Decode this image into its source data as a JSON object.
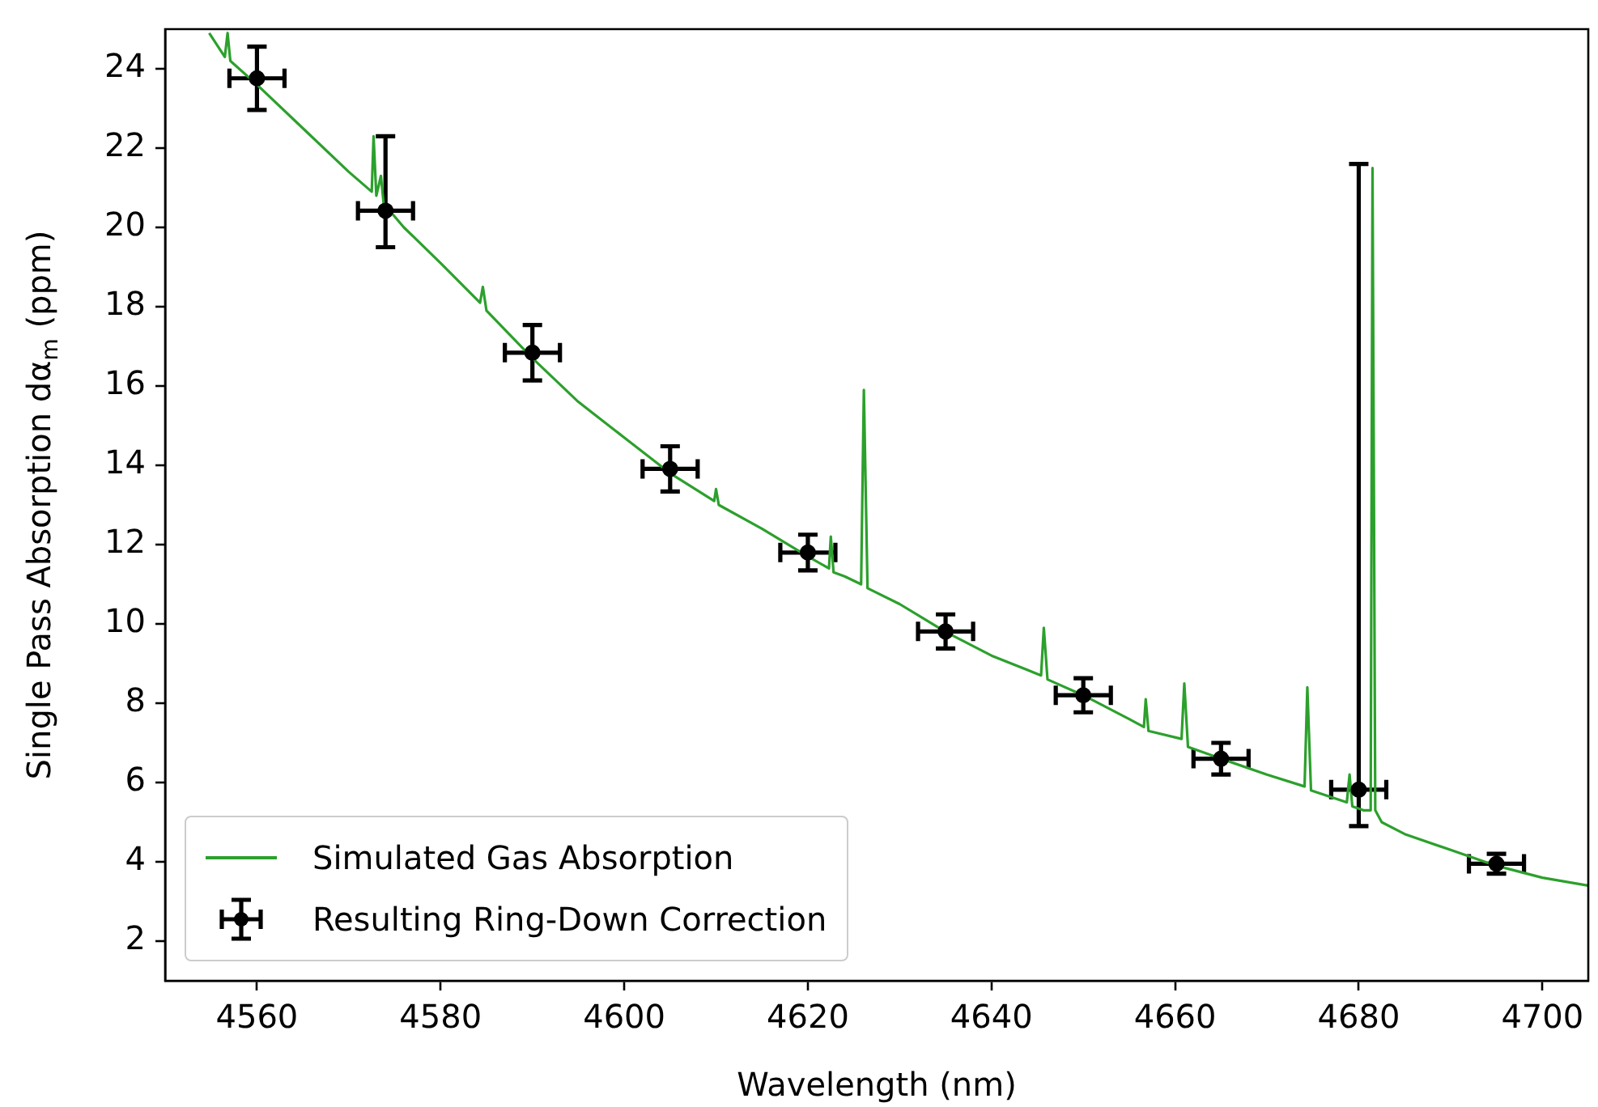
{
  "chart_data": {
    "type": "line",
    "xlabel": "Wavelength (nm)",
    "ylabel": "Single Pass Absorption dα$_{m}$ (ppm)",
    "xlim": [
      4550,
      4705
    ],
    "xticks": [
      4560,
      4580,
      4600,
      4620,
      4640,
      4660,
      4680,
      4700
    ],
    "ylim": [
      1,
      25
    ],
    "yticks": [
      2,
      4,
      6,
      8,
      10,
      12,
      14,
      16,
      18,
      20,
      22,
      24
    ],
    "grid": false,
    "legend": "bottom left",
    "series": [
      {
        "name": "Simulated Gas Absorption",
        "color": "#2ca02c",
        "x": [
          4554.8,
          4556.5,
          4556.8,
          4557.1,
          4560,
          4565,
          4570,
          4572.5,
          4572.7,
          4573.0,
          4573.5,
          4573.8,
          4576,
          4580,
          4584.3,
          4584.6,
          4585,
          4590,
          4595,
          4600,
          4605,
          4609.8,
          4610,
          4610.3,
          4615,
          4620,
          4622.3,
          4622.5,
          4622.8,
          4624,
          4625.8,
          4626.1,
          4626.5,
          4630,
          4635,
          4640,
          4645.4,
          4645.7,
          4646.1,
          4650,
          4655,
          4656.6,
          4656.8,
          4657.1,
          4660.7,
          4661.0,
          4661.4,
          4665,
          4670,
          4674.1,
          4674.4,
          4674.8,
          4678.7,
          4679.0,
          4679.3,
          4680.5,
          4681.3,
          4681.5,
          4681.8,
          4682.5,
          4685,
          4690,
          4695,
          4700,
          4705
        ],
        "values": [
          24.9,
          24.3,
          24.9,
          24.2,
          23.6,
          22.5,
          21.4,
          20.9,
          22.3,
          20.8,
          21.3,
          20.6,
          20.0,
          19.1,
          18.1,
          18.5,
          17.9,
          16.7,
          15.6,
          14.7,
          13.8,
          13.1,
          13.4,
          13.0,
          12.4,
          11.7,
          11.4,
          12.2,
          11.3,
          11.2,
          11.0,
          15.9,
          10.9,
          10.5,
          9.8,
          9.2,
          8.7,
          9.9,
          8.6,
          8.2,
          7.6,
          7.4,
          8.1,
          7.3,
          7.1,
          8.5,
          6.9,
          6.6,
          6.2,
          5.9,
          8.4,
          5.8,
          5.5,
          6.2,
          5.4,
          5.3,
          5.3,
          21.5,
          5.3,
          5.0,
          4.7,
          4.3,
          3.9,
          3.6,
          3.4
        ]
      },
      {
        "name": "Resulting Ring-Down Correction",
        "type": "scatter",
        "marker": "circle",
        "color": "#000000",
        "x": [
          4560,
          4574,
          4590,
          4605,
          4620,
          4635,
          4650,
          4665,
          4680,
          4695
        ],
        "values": [
          23.76,
          20.42,
          16.84,
          13.91,
          11.8,
          9.81,
          8.2,
          6.6,
          5.82,
          3.95
        ],
        "errors": [
          0.8,
          [
            19.5,
            22.3
          ],
          0.7,
          0.57,
          0.45,
          0.43,
          0.43,
          0.4,
          [
            4.9,
            21.6
          ],
          0.25
        ],
        "xerrors": [
          3,
          3,
          3,
          3,
          3,
          3,
          3,
          3,
          3,
          3
        ]
      }
    ]
  }
}
